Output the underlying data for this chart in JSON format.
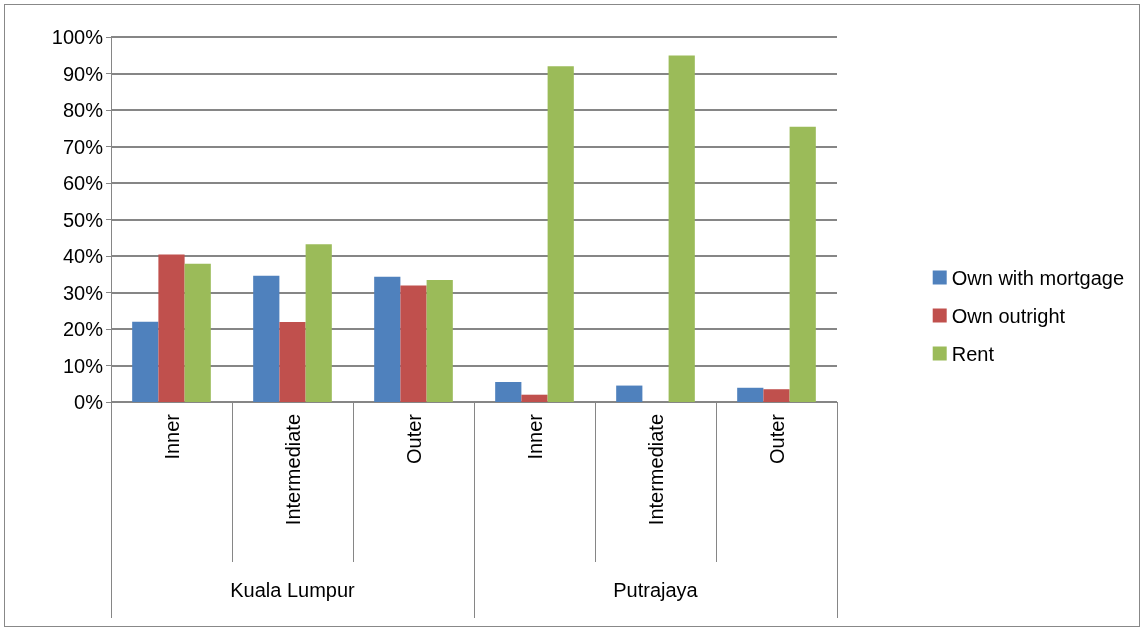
{
  "chart_data": {
    "type": "bar",
    "categories": [
      "Inner",
      "Intermediate",
      "Outer",
      "Inner",
      "Intermediate",
      "Outer"
    ],
    "annotations": [
      "Kuala Lumpur",
      "Putrajaya"
    ],
    "series": [
      {
        "name": "Own with mortgage",
        "color": "#4f81bd",
        "values": [
          22.0,
          34.6,
          34.3,
          5.5,
          4.5,
          3.9
        ]
      },
      {
        "name": "Own outright",
        "color": "#c0504d",
        "values": [
          40.4,
          21.9,
          31.9,
          2.0,
          0,
          3.5
        ]
      },
      {
        "name": "Rent",
        "color": "#9bbb59",
        "values": [
          37.9,
          43.2,
          33.4,
          92.0,
          94.9,
          75.4
        ]
      }
    ],
    "ylim": [
      0,
      100
    ],
    "yticks": [
      {
        "value": 0,
        "label": "0%"
      },
      {
        "value": 10,
        "label": "10%"
      },
      {
        "value": 20,
        "label": "20%"
      },
      {
        "value": 30,
        "label": "30%"
      },
      {
        "value": 40,
        "label": "40%"
      },
      {
        "value": 50,
        "label": "50%"
      },
      {
        "value": 60,
        "label": "60%"
      },
      {
        "value": 70,
        "label": "70%"
      },
      {
        "value": 80,
        "label": "80%"
      },
      {
        "value": 90,
        "label": "90%"
      },
      {
        "value": 100,
        "label": "100%"
      }
    ],
    "grid": "y",
    "legend": "right"
  }
}
